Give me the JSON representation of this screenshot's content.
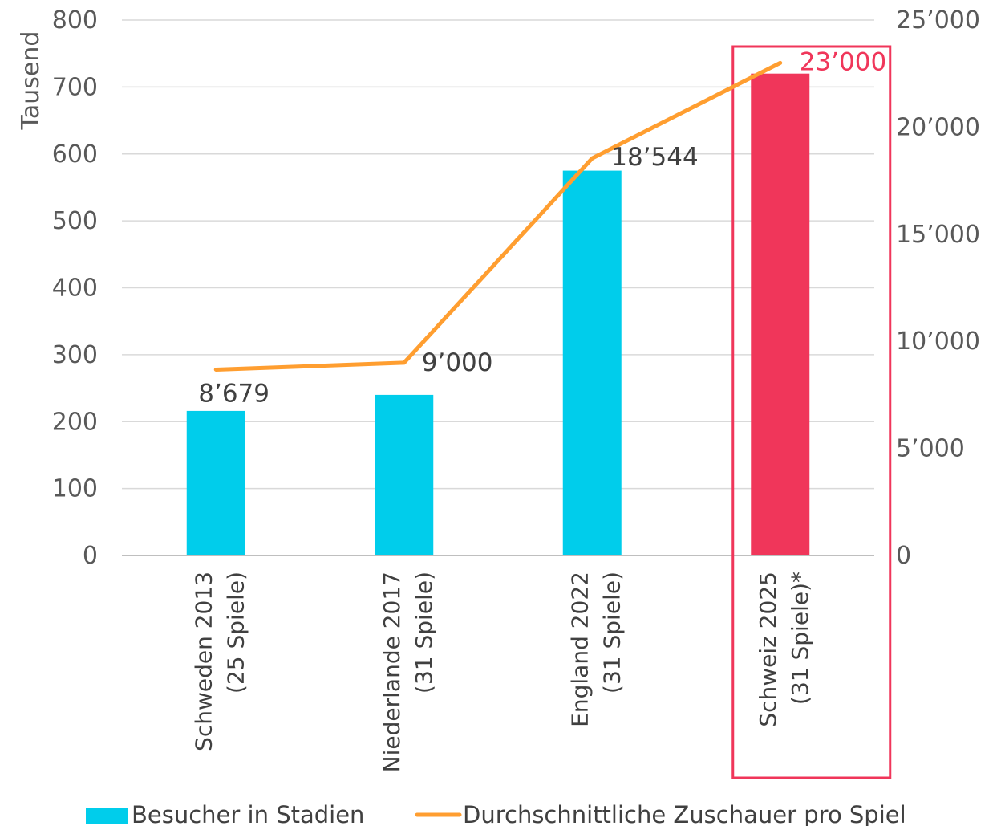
{
  "chart_data": {
    "type": "bar",
    "title": "",
    "categories": [
      [
        "Schweden 2013",
        "(25 Spiele)"
      ],
      [
        "Niederlande 2017",
        "(31 Spiele)"
      ],
      [
        "England 2022",
        "(31 Spiele)"
      ],
      [
        "Schweiz 2025",
        "(31 Spiele)*"
      ]
    ],
    "ylabel": "Tausend",
    "ylim": [
      0,
      800
    ],
    "yticks": [
      "0",
      "100",
      "200",
      "300",
      "400",
      "500",
      "600",
      "700",
      "800"
    ],
    "y2lim": [
      0,
      25000
    ],
    "y2ticks": [
      "0",
      "5’000",
      "10’000",
      "15’000",
      "20’000",
      "25’000"
    ],
    "grid": true,
    "legend_position": "bottom",
    "highlight_index": 3,
    "series": [
      {
        "name": "Besucher in Stadien",
        "type": "bar",
        "axis": "left",
        "values": [
          216,
          240,
          575,
          720
        ],
        "colors": [
          "#00CDEB",
          "#00CDEB",
          "#00CDEB",
          "#F0365A"
        ]
      },
      {
        "name": "Durchschnittliche Zuschauer pro Spiel",
        "type": "line",
        "axis": "right",
        "color": "#FF9E30",
        "values": [
          8679,
          9000,
          18544,
          23000
        ],
        "labels": [
          "8’679",
          "9’000",
          "18’544",
          "23’000"
        ],
        "label_colors": [
          "#404040",
          "#404040",
          "#404040",
          "#F0365A"
        ]
      }
    ]
  }
}
